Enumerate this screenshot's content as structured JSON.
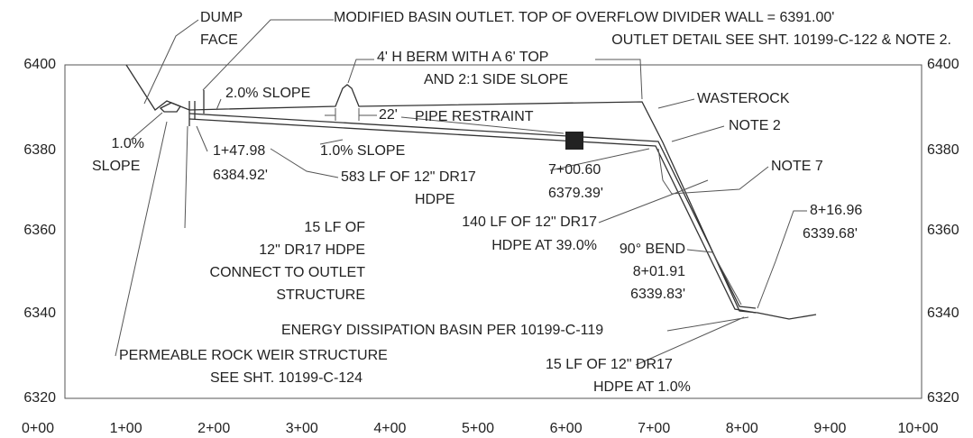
{
  "left_axis": [
    "6400",
    "6380",
    "6360",
    "6340",
    "6320"
  ],
  "right_axis": [
    "6400",
    "6380",
    "6360",
    "6340",
    "6320"
  ],
  "bottom_axis": [
    "0+00",
    "1+00",
    "2+00",
    "3+00",
    "4+00",
    "5+00",
    "6+00",
    "7+00",
    "8+00",
    "9+00",
    "10+00"
  ],
  "annotations": [
    {
      "lines": [
        "DUMP",
        "FACE"
      ]
    },
    {
      "lines": [
        "MODIFIED BASIN OUTLET.  TOP OF OVERFLOW DIVIDER WALL = 6391.00'",
        "OUTLET DETAIL SEE SHT. 10199-C-122 & NOTE 2."
      ]
    },
    {
      "lines": [
        "4' H BERM WITH A 6' TOP",
        "AND 2:1 SIDE SLOPE"
      ]
    },
    {
      "lines": [
        "2.0% SLOPE"
      ]
    },
    {
      "lines": [
        "22'"
      ]
    },
    {
      "lines": [
        "PIPE RESTRAINT"
      ]
    },
    {
      "lines": [
        "WASTEROCK"
      ]
    },
    {
      "lines": [
        "NOTE 2"
      ]
    },
    {
      "lines": [
        "1.0%",
        "SLOPE"
      ]
    },
    {
      "lines": [
        "1+47.98",
        "6384.92'"
      ]
    },
    {
      "lines": [
        "1.0% SLOPE"
      ]
    },
    {
      "lines": [
        "583 LF OF 12\" DR17",
        "HDPE"
      ]
    },
    {
      "lines": [
        "7+00.60",
        "6379.39'"
      ]
    },
    {
      "lines": [
        "NOTE 7"
      ]
    },
    {
      "lines": [
        "8+16.96",
        "6339.68'"
      ]
    },
    {
      "lines": [
        "15 LF OF",
        "12\" DR17 HDPE",
        "CONNECT TO OUTLET",
        "STRUCTURE"
      ]
    },
    {
      "lines": [
        "140 LF OF 12\" DR17",
        "HDPE AT 39.0%"
      ]
    },
    {
      "lines": [
        "90° BEND",
        "8+01.91",
        "6339.83'"
      ]
    },
    {
      "lines": [
        "ENERGY DISSIPATION BASIN PER 10199-C-119"
      ]
    },
    {
      "lines": [
        "PERMEABLE ROCK WEIR STRUCTURE",
        "SEE SHT. 10199-C-124"
      ]
    },
    {
      "lines": [
        "15 LF OF 12\" DR17",
        "HDPE AT 1.0%"
      ]
    }
  ]
}
